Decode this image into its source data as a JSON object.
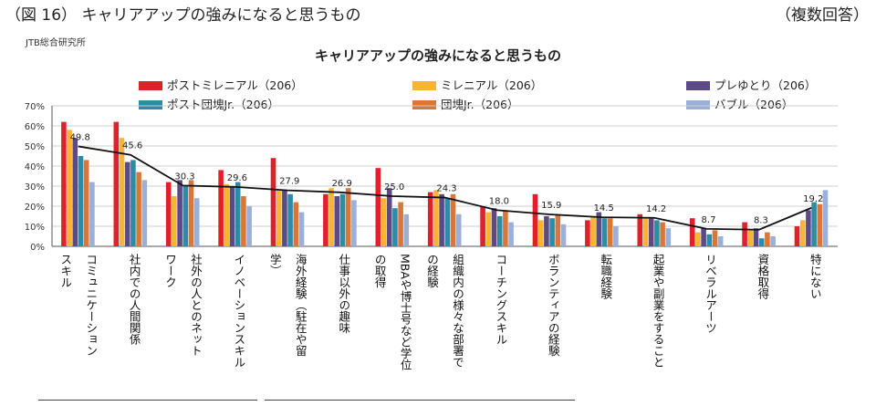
{
  "figure_caption": "（図 16） キャリアアップの強みになると思うもの",
  "figure_note": "（複数回答）",
  "org_label": "JTB総合研究所",
  "chart_data": {
    "type": "bar",
    "title": "キャリアアップの強みになると思うもの",
    "ylim": [
      0,
      70
    ],
    "y_ticks": [
      "0%",
      "10%",
      "20%",
      "30%",
      "40%",
      "50%",
      "60%",
      "70%"
    ],
    "grid": true,
    "legend_position": "top",
    "categories": [
      "コミュニケーションスキル",
      "社内での人間関係",
      "社外の人とのネットワーク",
      "イノベーションスキル",
      "海外経験（駐在や留学）",
      "仕事以外の趣味",
      "MBAや博士号など学位の取得",
      "組織内の様々な部署での経験",
      "コーチングスキル",
      "ボランティアの経験",
      "転職経験",
      "起業や副業をすること",
      "リベラルアーツ",
      "資格取得",
      "特にない"
    ],
    "category_lines": [
      [
        "コミュニケーション",
        "スキル"
      ],
      [
        "社内での人間関係"
      ],
      [
        "社外の人とのネット",
        "ワーク"
      ],
      [
        "イノベーションスキル"
      ],
      [
        "海外経験（駐在や留",
        "学）"
      ],
      [
        "仕事以外の趣味"
      ],
      [
        "MBAや博士号など学位",
        "の取得"
      ],
      [
        "組織内の様々な部署で",
        "の経験"
      ],
      [
        "コーチングスキル"
      ],
      [
        "ボランティアの経験"
      ],
      [
        "転職経験"
      ],
      [
        "起業や副業をすること"
      ],
      [
        "リベラルアーツ"
      ],
      [
        "資格取得"
      ],
      [
        "特にない"
      ]
    ],
    "series": [
      {
        "name": "ポストミレニアル（206）",
        "color": "#e0202a",
        "values": [
          62,
          62,
          32,
          38,
          44,
          26,
          39,
          27,
          20,
          26,
          13,
          16,
          14,
          12,
          10
        ]
      },
      {
        "name": "ミレニアル（206）",
        "color": "#f7b531",
        "values": [
          58,
          54,
          25,
          31,
          28,
          29,
          24,
          28,
          17,
          13,
          15,
          14,
          7,
          8,
          13
        ]
      },
      {
        "name": "プレゆとり（206）",
        "color": "#5b4a86",
        "values": [
          54,
          42,
          33,
          30,
          28,
          25,
          29,
          26,
          19,
          15,
          17,
          14,
          9,
          9,
          18
        ]
      },
      {
        "name": "ポスト団塊Jr.（206）",
        "color": "#2e8ba6",
        "values": [
          45,
          43,
          30,
          32,
          26,
          26,
          19,
          24,
          15,
          14,
          14,
          13,
          6,
          4,
          22
        ]
      },
      {
        "name": "団塊Jr.（206）",
        "color": "#d9773a",
        "values": [
          43,
          37,
          33,
          25,
          22,
          29,
          22,
          26,
          18,
          16,
          14,
          12,
          8,
          7,
          21
        ]
      },
      {
        "name": "バブル（206）",
        "color": "#99b0d8",
        "values": [
          32,
          33,
          24,
          20,
          17,
          23,
          16,
          16,
          12,
          11,
          10,
          9,
          5,
          5,
          28
        ]
      }
    ],
    "average_line": {
      "color": "#111111",
      "values": [
        49.8,
        45.6,
        30.3,
        29.6,
        27.9,
        26.9,
        25.0,
        24.3,
        18.0,
        15.9,
        14.5,
        14.2,
        8.7,
        8.3,
        19.2
      ],
      "labels": [
        "49.8",
        "45.6",
        "30.3",
        "29.6",
        "27.9",
        "26.9",
        "25.0",
        "24.3",
        "18.0",
        "15.9",
        "14.5",
        "14.2",
        "8.7",
        "8.3",
        "19.2"
      ]
    }
  }
}
